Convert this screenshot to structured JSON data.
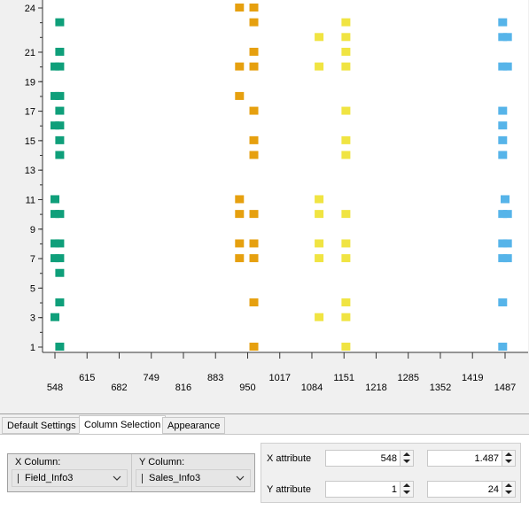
{
  "chart_data": {
    "type": "scatter",
    "xlabel": "Field_Info3",
    "ylabel": "Sales_Info3",
    "xlim": [
      535,
      1502
    ],
    "ylim": [
      0.3,
      24.4
    ],
    "x_ticks": [
      548,
      615,
      682,
      749,
      816,
      883,
      950,
      1017,
      1084,
      1151,
      1218,
      1285,
      1352,
      1419,
      1487
    ],
    "y_ticks": [
      1,
      3,
      5,
      7,
      9,
      11,
      13,
      15,
      17,
      19,
      21,
      24
    ],
    "series": [
      {
        "name": "green",
        "color": "#0f9f7a",
        "points": [
          [
            558,
            1
          ],
          [
            548,
            3
          ],
          [
            558,
            4
          ],
          [
            558,
            6
          ],
          [
            548,
            7
          ],
          [
            558,
            7
          ],
          [
            548,
            8
          ],
          [
            558,
            8
          ],
          [
            548,
            10
          ],
          [
            558,
            10
          ],
          [
            548,
            11
          ],
          [
            558,
            14
          ],
          [
            558,
            15
          ],
          [
            548,
            16
          ],
          [
            558,
            16
          ],
          [
            558,
            17
          ],
          [
            548,
            18
          ],
          [
            558,
            18
          ],
          [
            548,
            20
          ],
          [
            558,
            20
          ],
          [
            558,
            21
          ],
          [
            558,
            23
          ]
        ]
      },
      {
        "name": "orange",
        "color": "#e6a00f",
        "points": [
          [
            963,
            1
          ],
          [
            963,
            4
          ],
          [
            933,
            7
          ],
          [
            963,
            7
          ],
          [
            933,
            8
          ],
          [
            963,
            8
          ],
          [
            933,
            10
          ],
          [
            963,
            10
          ],
          [
            933,
            11
          ],
          [
            963,
            14
          ],
          [
            963,
            15
          ],
          [
            963,
            17
          ],
          [
            933,
            18
          ],
          [
            933,
            20
          ],
          [
            963,
            20
          ],
          [
            963,
            21
          ],
          [
            963,
            23
          ],
          [
            933,
            24
          ],
          [
            963,
            24
          ]
        ]
      },
      {
        "name": "yellow",
        "color": "#f0e442",
        "points": [
          [
            1155,
            1
          ],
          [
            1099,
            3
          ],
          [
            1155,
            3
          ],
          [
            1155,
            4
          ],
          [
            1099,
            7
          ],
          [
            1155,
            7
          ],
          [
            1099,
            8
          ],
          [
            1155,
            8
          ],
          [
            1099,
            10
          ],
          [
            1155,
            10
          ],
          [
            1099,
            11
          ],
          [
            1155,
            14
          ],
          [
            1155,
            15
          ],
          [
            1155,
            17
          ],
          [
            1099,
            20
          ],
          [
            1155,
            20
          ],
          [
            1155,
            21
          ],
          [
            1099,
            22
          ],
          [
            1155,
            22
          ],
          [
            1155,
            23
          ]
        ]
      },
      {
        "name": "blue",
        "color": "#56b4e9",
        "points": [
          [
            1482,
            1
          ],
          [
            1482,
            4
          ],
          [
            1482,
            7
          ],
          [
            1492,
            7
          ],
          [
            1482,
            8
          ],
          [
            1492,
            8
          ],
          [
            1482,
            10
          ],
          [
            1492,
            10
          ],
          [
            1487,
            11
          ],
          [
            1482,
            14
          ],
          [
            1482,
            15
          ],
          [
            1482,
            16
          ],
          [
            1482,
            17
          ],
          [
            1482,
            20
          ],
          [
            1492,
            20
          ],
          [
            1482,
            22
          ],
          [
            1492,
            22
          ],
          [
            1482,
            23
          ]
        ]
      }
    ]
  },
  "tabs": [
    "Default Settings",
    "Column Selection",
    "Appearance"
  ],
  "active_tab": "Column Selection",
  "x_column": {
    "label": "X Column:",
    "value": "Field_Info3"
  },
  "y_column": {
    "label": "Y Column:",
    "value": "Sales_Info3"
  },
  "attributes": {
    "x_label": "X attribute",
    "x_min": "548",
    "x_max": "1.487",
    "y_label": "Y attribute",
    "y_min": "1",
    "y_max": "24"
  }
}
